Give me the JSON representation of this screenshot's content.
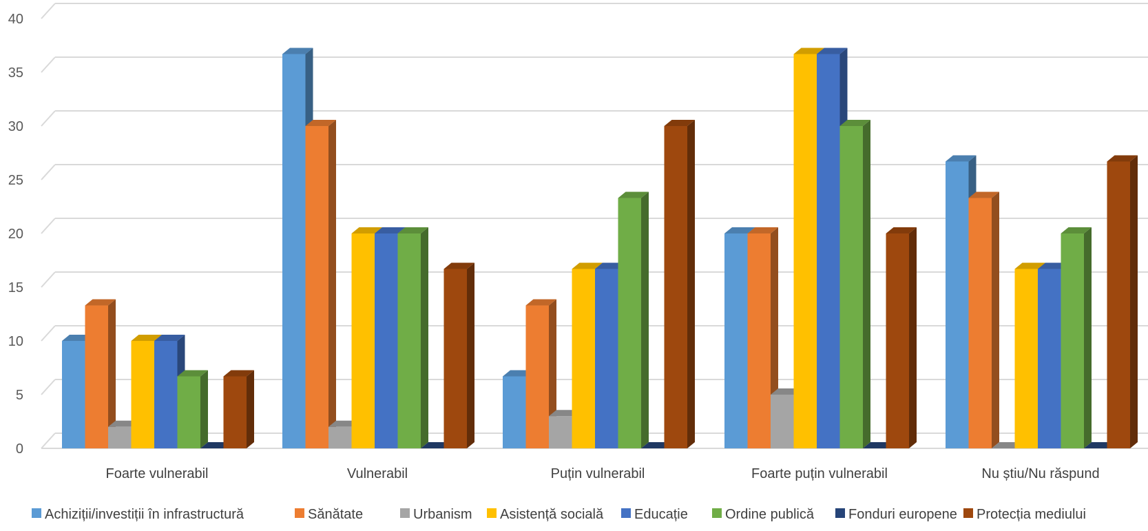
{
  "chart_data": {
    "type": "bar",
    "categories": [
      "Foarte vulnerabil",
      "Vulnerabil",
      "Puțin vulnerabil",
      "Foarte puțin vulnerabil",
      "Nu știu/Nu răspund"
    ],
    "series": [
      {
        "name": "Achiziții/investiții în infrastructură",
        "color": "#5B9BD5",
        "values": [
          10,
          36.7,
          6.7,
          20,
          26.7
        ]
      },
      {
        "name": "Sănătate",
        "color": "#ED7D31",
        "values": [
          13.3,
          30,
          13.3,
          20,
          23.3
        ]
      },
      {
        "name": "Urbanism",
        "color": "#A5A5A5",
        "values": [
          2,
          2,
          3,
          5,
          0
        ]
      },
      {
        "name": "Asistență socială",
        "color": "#FFC000",
        "values": [
          10,
          20,
          16.7,
          36.7,
          16.7
        ]
      },
      {
        "name": "Educație",
        "color": "#4472C4",
        "values": [
          10,
          20,
          16.7,
          36.7,
          16.7
        ]
      },
      {
        "name": "Ordine publică",
        "color": "#70AD47",
        "values": [
          6.7,
          20,
          23.3,
          30,
          20
        ]
      },
      {
        "name": "Fonduri europene",
        "color": "#264478",
        "values": [
          0,
          0,
          0,
          0,
          0
        ]
      },
      {
        "name": "Protecția mediului",
        "color": "#9E480E",
        "values": [
          6.7,
          16.7,
          30,
          20,
          26.7
        ]
      }
    ],
    "yticks": [
      "0",
      "5",
      "10",
      "15",
      "20",
      "25",
      "30",
      "35",
      "40"
    ],
    "ylim": [
      0,
      40
    ],
    "grid": true,
    "legend_position": "bottom",
    "style": "3d-clustered-column"
  }
}
